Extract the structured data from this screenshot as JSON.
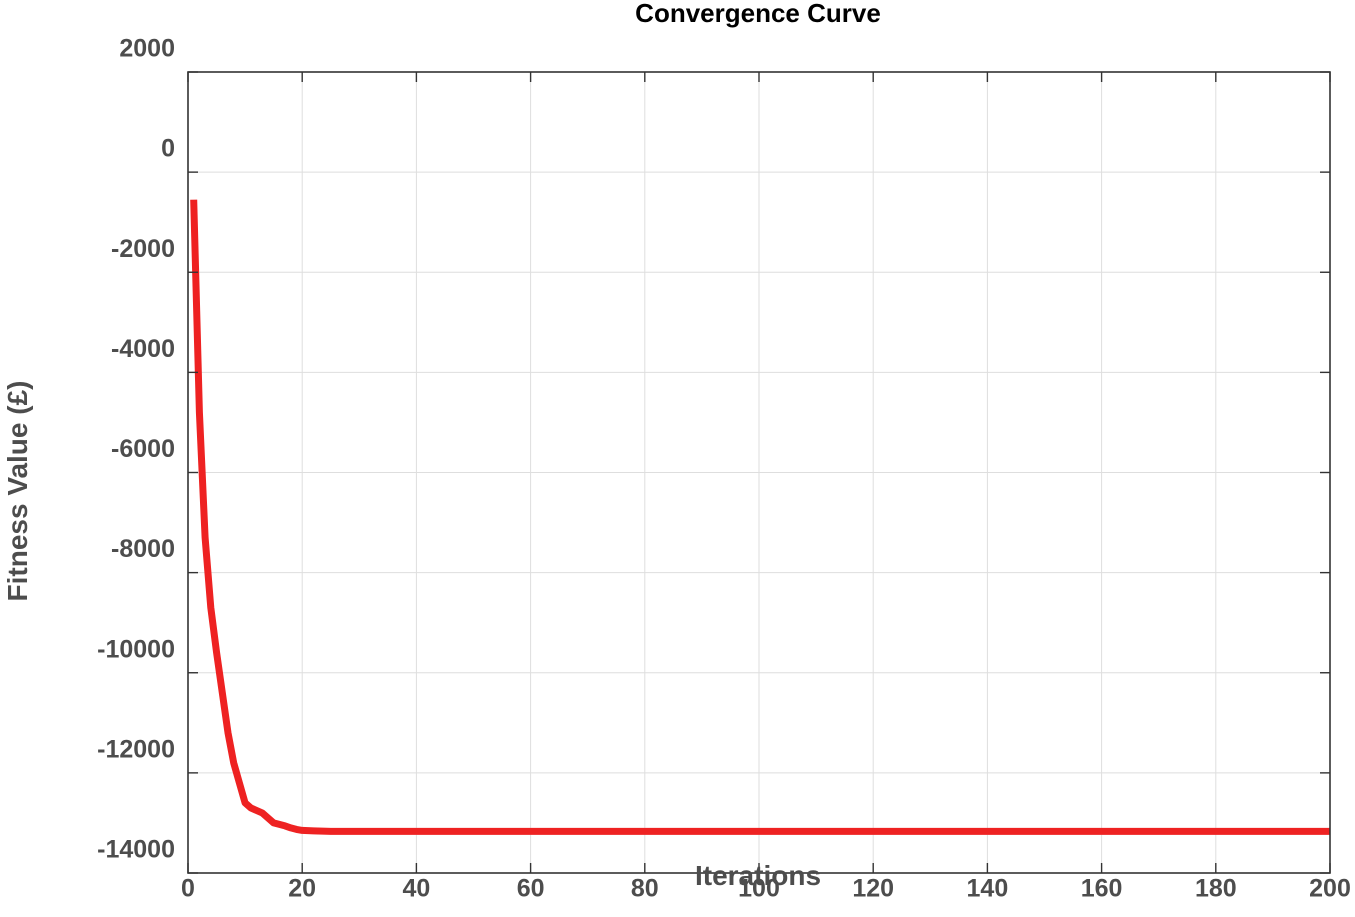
{
  "chart_data": {
    "type": "line",
    "title": "Convergence Curve",
    "xlabel": "Iterations",
    "ylabel": "Fitness Value (£)",
    "xlim": [
      0,
      200
    ],
    "ylim": [
      -14000,
      2000
    ],
    "xticks": [
      0,
      20,
      40,
      60,
      80,
      100,
      120,
      140,
      160,
      180,
      200
    ],
    "yticks": [
      2000,
      0,
      -2000,
      -4000,
      -6000,
      -8000,
      -10000,
      -12000,
      -14000
    ],
    "xtick_labels": [
      "0",
      "20",
      "40",
      "60",
      "80",
      "100",
      "120",
      "140",
      "160",
      "180",
      "200"
    ],
    "ytick_labels": [
      "2000",
      "0",
      "-2000",
      "-4000",
      "-6000",
      "-8000",
      "-10000",
      "-12000",
      "-14000"
    ],
    "grid": true,
    "series": [
      {
        "color": "#ee2222",
        "x": [
          1,
          2,
          3,
          4,
          5,
          6,
          7,
          8,
          9,
          10,
          11,
          12,
          13,
          14,
          15,
          16,
          17,
          18,
          19,
          20,
          22,
          25,
          30,
          40,
          60,
          80,
          100,
          120,
          140,
          160,
          180,
          200
        ],
        "y": [
          -550,
          -4800,
          -7300,
          -8700,
          -9600,
          -10400,
          -11200,
          -11800,
          -12200,
          -12600,
          -12700,
          -12750,
          -12800,
          -12900,
          -13000,
          -13030,
          -13060,
          -13100,
          -13130,
          -13150,
          -13160,
          -13170,
          -13170,
          -13170,
          -13170,
          -13170,
          -13170,
          -13170,
          -13170,
          -13170,
          -13170,
          -13170
        ]
      }
    ]
  }
}
